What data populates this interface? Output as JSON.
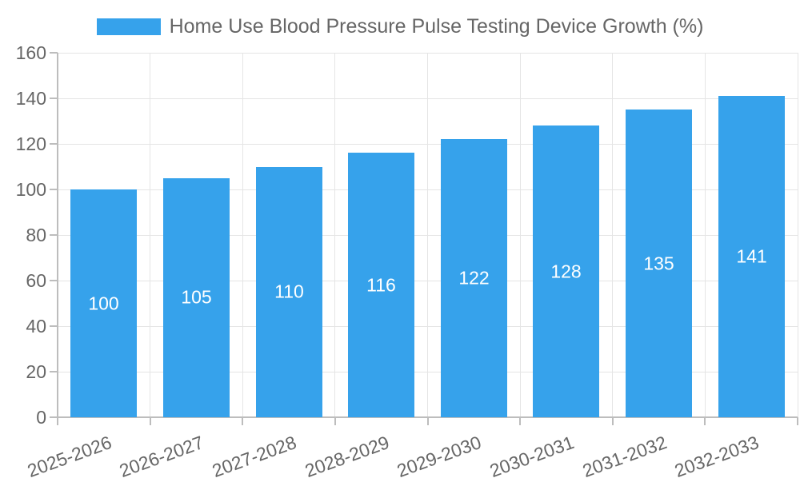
{
  "chart_data": {
    "type": "bar",
    "title": "Home Use Blood Pressure Pulse Testing Device Growth (%)",
    "categories": [
      "2025-2026",
      "2026-2027",
      "2027-2028",
      "2028-2029",
      "2029-2030",
      "2030-2031",
      "2031-2032",
      "2032-2033"
    ],
    "values": [
      100,
      105,
      110,
      116,
      122,
      128,
      135,
      141
    ],
    "xlabel": "",
    "ylabel": "",
    "ylim": [
      0,
      160
    ],
    "ytick_step": 20,
    "yticks": [
      0,
      20,
      40,
      60,
      80,
      100,
      120,
      140,
      160
    ],
    "grid": "both",
    "legend_position": "top-center",
    "legend_swatch": "bar-color-swatch",
    "colors": {
      "bar": "#36A2EB",
      "text": "#666666",
      "grid": "#E5E5E5",
      "axis": "#BDBDBD",
      "value_label": "#FFFFFF",
      "background": "#FFFFFF"
    }
  }
}
